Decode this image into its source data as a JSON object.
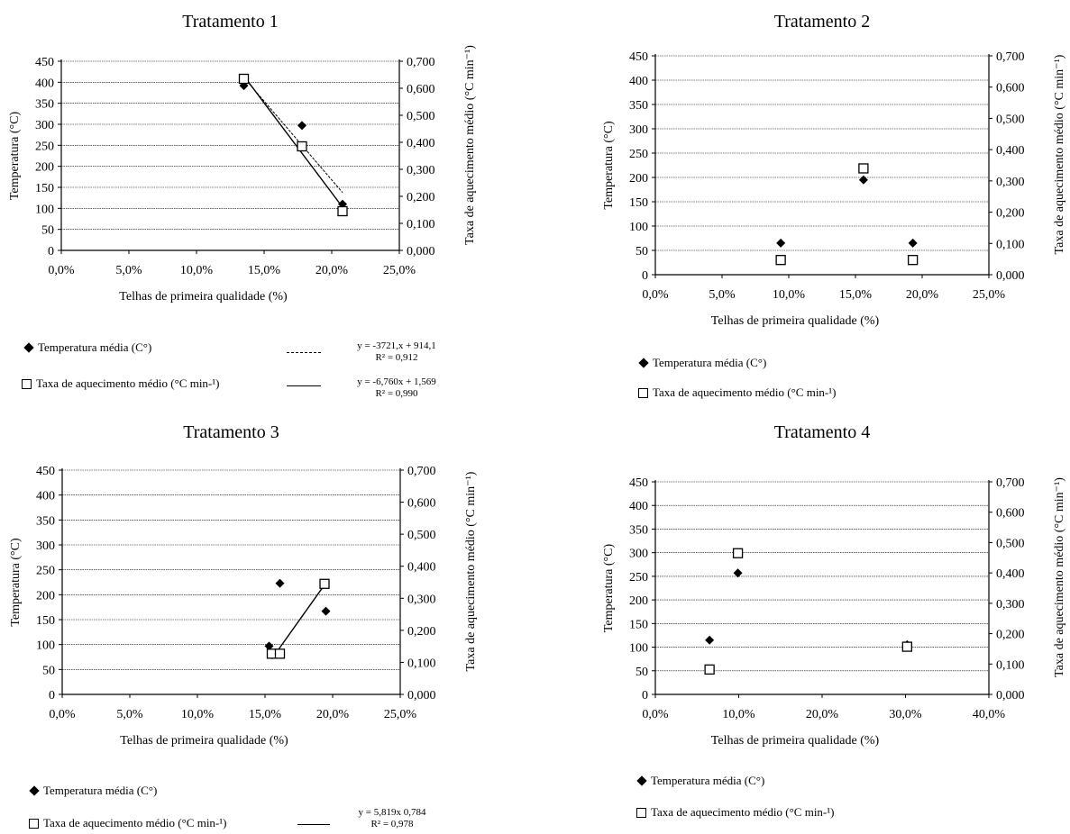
{
  "chart_data": [
    {
      "type": "scatter",
      "title": "Tratamento 1",
      "xlabel": "Telhas de primeira qualidade (%)",
      "ylabel": "Temperatura (°C)",
      "y2label": "Taxa de aquecimento médio (°C min⁻¹)",
      "xticks": [
        "0,0%",
        "5,0%",
        "10,0%",
        "15,0%",
        "20,0%",
        "25,0%"
      ],
      "xlim": [
        0,
        0.25
      ],
      "ylim": [
        0,
        450
      ],
      "y2lim": [
        0,
        0.7
      ],
      "yticks": [
        "0",
        "50",
        "100",
        "150",
        "200",
        "250",
        "300",
        "350",
        "400",
        "450"
      ],
      "y2ticks": [
        "0,000",
        "0,100",
        "0,200",
        "0,300",
        "0,400",
        "0,500",
        "0,600",
        "0,700"
      ],
      "grid": true,
      "series": [
        {
          "name": "Temperatura média (C°)",
          "axis": "left",
          "marker": "diamond",
          "x": [
            0.135,
            0.178,
            0.208
          ],
          "values": [
            392,
            297,
            110
          ]
        },
        {
          "name": "Taxa de aquecimento médio (°C min⁻¹)",
          "axis": "right",
          "marker": "square",
          "x": [
            0.135,
            0.178,
            0.208
          ],
          "values": [
            0.635,
            0.385,
            0.145
          ]
        }
      ],
      "trendlines": [
        {
          "series": 0,
          "style": "dashed",
          "x": [
            0.135,
            0.208
          ],
          "equation": "y = -3721,x + 914,1",
          "r2": "R² = 0,912"
        },
        {
          "series": 1,
          "style": "solid",
          "x": [
            0.135,
            0.208
          ],
          "equation": "y = -6,760x + 1,569",
          "r2": "R² = 0,990"
        }
      ],
      "legend": {
        "temp": "Temperatura média (C°)",
        "taxa": "Taxa de aquecimento médio (°C min-¹)"
      }
    },
    {
      "type": "scatter",
      "title": "Tratamento 2",
      "xlabel": "Telhas de primeira qualidade (%)",
      "ylabel": "Temperatura (°C)",
      "y2label": "Taxa de aquecimento médio (°C min⁻¹)",
      "xticks": [
        "0,0%",
        "5,0%",
        "10,0%",
        "15,0%",
        "20,0%",
        "25,0%"
      ],
      "xlim": [
        0,
        0.25
      ],
      "ylim": [
        0,
        450
      ],
      "y2lim": [
        0,
        0.7
      ],
      "yticks": [
        "0",
        "50",
        "100",
        "150",
        "200",
        "250",
        "300",
        "350",
        "400",
        "450"
      ],
      "y2ticks": [
        "0,000",
        "0,100",
        "0,200",
        "0,300",
        "0,400",
        "0,500",
        "0,600",
        "0,700"
      ],
      "grid": true,
      "series": [
        {
          "name": "Temperatura média (C°)",
          "axis": "left",
          "marker": "diamond",
          "x": [
            0.094,
            0.156,
            0.193
          ],
          "values": [
            65,
            195,
            65
          ]
        },
        {
          "name": "Taxa de aquecimento médio (°C min⁻¹)",
          "axis": "right",
          "marker": "square",
          "x": [
            0.094,
            0.156,
            0.193
          ],
          "values": [
            0.047,
            0.34,
            0.047
          ]
        }
      ],
      "trendlines": [],
      "legend": {
        "temp": "Temperatura média (C°)",
        "taxa": "Taxa de aquecimento médio (°C min-¹)"
      }
    },
    {
      "type": "scatter",
      "title": "Tratamento 3",
      "xlabel": "Telhas de primeira qualidade (%)",
      "ylabel": "Temperatura (°C)",
      "y2label": "Taxa de aquecimento médio (°C min⁻¹)",
      "xticks": [
        "0,0%",
        "5,0%",
        "10,0%",
        "15,0%",
        "20,0%",
        "25,0%"
      ],
      "xlim": [
        0,
        0.25
      ],
      "ylim": [
        0,
        450
      ],
      "y2lim": [
        0,
        0.7
      ],
      "yticks": [
        "0",
        "50",
        "100",
        "150",
        "200",
        "250",
        "300",
        "350",
        "400",
        "450"
      ],
      "y2ticks": [
        "0,000",
        "0,100",
        "0,200",
        "0,300",
        "0,400",
        "0,500",
        "0,600",
        "0,700"
      ],
      "grid": true,
      "series": [
        {
          "name": "Temperatura média (C°)",
          "axis": "left",
          "marker": "diamond",
          "x": [
            0.153,
            0.161,
            0.195
          ],
          "values": [
            97,
            223,
            167
          ]
        },
        {
          "name": "Taxa de aquecimento médio (°C min⁻¹)",
          "axis": "right",
          "marker": "square",
          "x": [
            0.155,
            0.161,
            0.194
          ],
          "values": [
            0.127,
            0.127,
            0.345
          ]
        }
      ],
      "trendlines": [
        {
          "series": 1,
          "style": "solid",
          "x": [
            0.155,
            0.194
          ],
          "equation": "y = 5,819x   0,784",
          "r2": "R² = 0,978"
        }
      ],
      "legend": {
        "temp": "Temperatura média (C°)",
        "taxa": "Taxa de aquecimento médio (°C min-¹)"
      }
    },
    {
      "type": "scatter",
      "title": "Tratamento 4",
      "xlabel": "Telhas de primeira qualidade (%)",
      "ylabel": "Temperatura (°C)",
      "y2label": "Taxa de aquecimento médio (°C min⁻¹)",
      "xticks": [
        "0,0%",
        "10,0%",
        "20,0%",
        "30,0%",
        "40,0%"
      ],
      "xlim": [
        0,
        0.4
      ],
      "ylim": [
        0,
        450
      ],
      "y2lim": [
        0,
        0.7
      ],
      "yticks": [
        "0",
        "50",
        "100",
        "150",
        "200",
        "250",
        "300",
        "350",
        "400",
        "450"
      ],
      "y2ticks": [
        "0,000",
        "0,100",
        "0,200",
        "0,300",
        "0,400",
        "0,500",
        "0,600",
        "0,700"
      ],
      "grid": true,
      "series": [
        {
          "name": "Temperatura média (C°)",
          "axis": "left",
          "marker": "diamond",
          "x": [
            0.065,
            0.099,
            0.302
          ],
          "values": [
            115,
            257,
            105
          ]
        },
        {
          "name": "Taxa de aquecimento médio (°C min⁻¹)",
          "axis": "right",
          "marker": "square",
          "x": [
            0.065,
            0.099,
            0.302
          ],
          "values": [
            0.082,
            0.465,
            0.157
          ]
        }
      ],
      "trendlines": [],
      "legend": {
        "temp": "Temperatura média (C°)",
        "taxa": "Taxa de aquecimento médio (°C min-¹)"
      }
    }
  ]
}
